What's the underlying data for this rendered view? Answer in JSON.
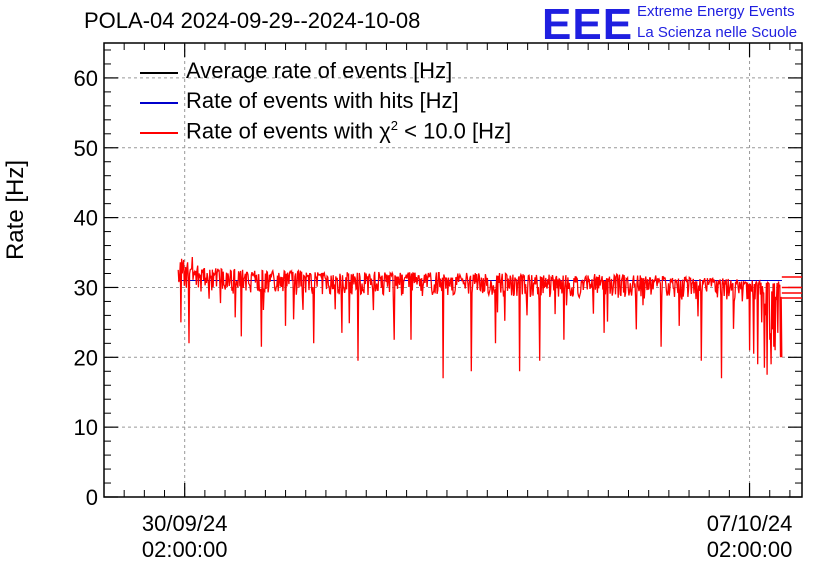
{
  "title": "POLA-04 2024-09-29--2024-10-08",
  "logo": {
    "mark": "EEE",
    "line1": "Extreme Energy Events",
    "line2": "La Scienza nelle Scuole",
    "color": "#1f1fe0"
  },
  "legend": [
    {
      "label": "Average rate of events [Hz]",
      "color": "#000000"
    },
    {
      "label": "Rate of events with hits [Hz]",
      "color": "#0000cc"
    },
    {
      "label_prefix": "Rate of events with ",
      "symbol": "χ",
      "sup": "2",
      "label_suffix": " < 10.0 [Hz]",
      "color": "#ff0000"
    }
  ],
  "chart_data": {
    "type": "line",
    "title": "POLA-04 2024-09-29--2024-10-08",
    "ylabel": "Rate [Hz]",
    "xlabel": "",
    "ylim": [
      0,
      65
    ],
    "yticks": [
      0,
      10,
      20,
      30,
      40,
      50,
      60
    ],
    "xlim_days": [
      0,
      8.65
    ],
    "xticks": [
      {
        "day": 1.0,
        "label_date": "30/09/24",
        "label_time": "02:00:00"
      },
      {
        "day": 8.0,
        "label_date": "07/10/24",
        "label_time": "02:00:00"
      }
    ],
    "grid": true,
    "series": [
      {
        "name": "Average rate of events [Hz]",
        "color": "#000000",
        "level": 31.0,
        "t_start": 0.92,
        "t_end": 8.4
      },
      {
        "name": "Rate of events with hits [Hz]",
        "color": "#0000cc",
        "level": 31.0,
        "t_start": 0.92,
        "t_end": 8.4
      },
      {
        "name": "Rate of events with χ2 < 10.0 [Hz]",
        "color": "#ff0000",
        "t_start": 0.92,
        "t_end": 8.4,
        "baseline": [
          [
            0.92,
            32.0
          ],
          [
            2.5,
            31.5
          ],
          [
            4.5,
            31.2
          ],
          [
            6.5,
            31.0
          ],
          [
            7.5,
            30.5
          ],
          [
            8.4,
            30.0
          ]
        ],
        "noise_spread": 2.5,
        "dips": [
          [
            0.95,
            25.0
          ],
          [
            1.05,
            22.0
          ],
          [
            1.7,
            23.0
          ],
          [
            1.95,
            21.5
          ],
          [
            2.25,
            24.5
          ],
          [
            2.6,
            22.0
          ],
          [
            2.95,
            23.5
          ],
          [
            3.15,
            19.5
          ],
          [
            3.6,
            22.5
          ],
          [
            3.8,
            22.5
          ],
          [
            4.2,
            17.0
          ],
          [
            4.55,
            18.0
          ],
          [
            4.85,
            22.0
          ],
          [
            5.15,
            18.0
          ],
          [
            5.4,
            19.5
          ],
          [
            5.7,
            22.5
          ],
          [
            6.2,
            23.5
          ],
          [
            6.6,
            24.0
          ],
          [
            6.9,
            21.5
          ],
          [
            7.4,
            19.5
          ],
          [
            7.65,
            17.0
          ],
          [
            8.05,
            20.5
          ],
          [
            8.4,
            20.0
          ],
          [
            8.25,
            22.5
          ],
          [
            8.28,
            24.0
          ],
          [
            8.2,
            26.0
          ],
          [
            8.15,
            25.0
          ],
          [
            8.3,
            21.5
          ],
          [
            8.35,
            23.5
          ],
          [
            8.0,
            21.0
          ],
          [
            8.1,
            19.0
          ],
          [
            8.18,
            18.5
          ],
          [
            8.22,
            17.5
          ],
          [
            8.27,
            19.0
          ],
          [
            8.32,
            21.0
          ],
          [
            8.38,
            20.0
          ]
        ],
        "tail_levels": [
          31.5,
          30.0,
          29.2,
          28.5
        ]
      }
    ]
  }
}
